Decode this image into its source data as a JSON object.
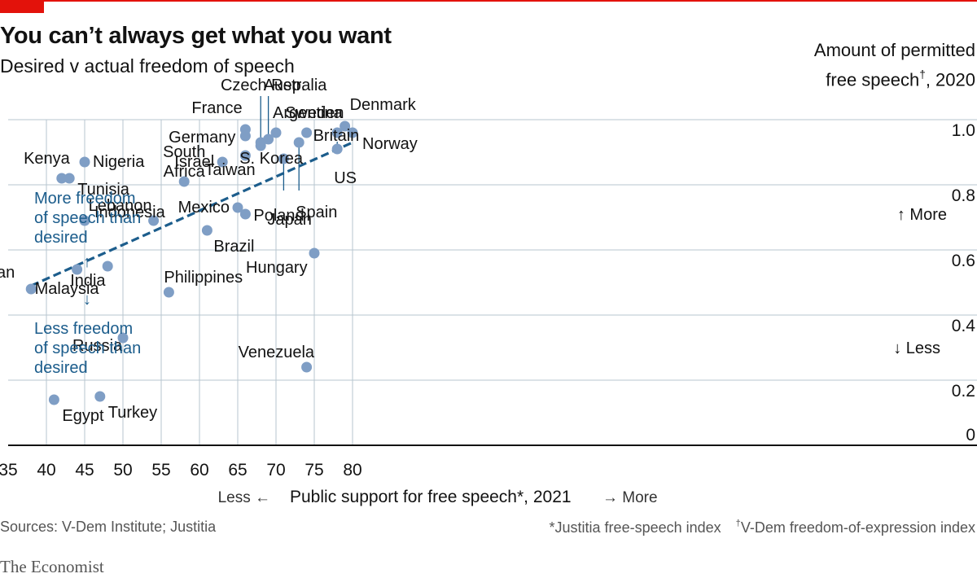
{
  "header": {
    "title": "You can’t always get what you want",
    "subtitle": "Desired v actual freedom of speech",
    "ytitle_line1": "Amount of permitted",
    "ytitle_line2": "free speech",
    "ytitle_dagger": "†",
    "ytitle_year": ", 2020"
  },
  "colors": {
    "accent_red": "#e3120b",
    "point": "#7f9ec5",
    "trend": "#1c5d8c",
    "grid": "#b7c6cf",
    "text": "#121212"
  },
  "chart_data": {
    "type": "scatter",
    "title": "You can’t always get what you want",
    "subtitle": "Desired v actual freedom of speech",
    "xlabel": "Public support for free speech*, 2021",
    "ylabel": "Amount of permitted free speech†, 2020",
    "xlim": [
      35,
      85
    ],
    "ylim": [
      0,
      1.0
    ],
    "x_ticks": [
      "35",
      "40",
      "45",
      "50",
      "55",
      "60",
      "65",
      "70",
      "75",
      "80"
    ],
    "y_ticks": [
      "0",
      "0.2",
      "0.4",
      "0.6",
      "0.8",
      "1.0"
    ],
    "grid": true,
    "points": [
      {
        "label": "Pakistan",
        "x": 38,
        "y": 0.48
      },
      {
        "label": "Egypt",
        "x": 41,
        "y": 0.14
      },
      {
        "label": "Kenya",
        "x": 42,
        "y": 0.82
      },
      {
        "label": "Tunisia",
        "x": 43,
        "y": 0.82
      },
      {
        "label": "Malaysia",
        "x": 44,
        "y": 0.54
      },
      {
        "label": "Nigeria",
        "x": 45,
        "y": 0.87
      },
      {
        "label": "Indonesia",
        "x": 45,
        "y": 0.69
      },
      {
        "label": "Turkey",
        "x": 47,
        "y": 0.15
      },
      {
        "label": "India",
        "x": 48,
        "y": 0.55
      },
      {
        "label": "Russia",
        "x": 50,
        "y": 0.33
      },
      {
        "label": "Lebanon",
        "x": 54,
        "y": 0.69
      },
      {
        "label": "Philippines",
        "x": 56,
        "y": 0.47
      },
      {
        "label": "South Africa",
        "x": 58,
        "y": 0.81
      },
      {
        "label": "Brazil",
        "x": 61,
        "y": 0.66
      },
      {
        "label": "Israel",
        "x": 63,
        "y": 0.87
      },
      {
        "label": "Mexico",
        "x": 65,
        "y": 0.73
      },
      {
        "label": "Germany",
        "x": 66,
        "y": 0.95
      },
      {
        "label": "France",
        "x": 66,
        "y": 0.97
      },
      {
        "label": "Taiwan",
        "x": 66,
        "y": 0.89
      },
      {
        "label": "Poland",
        "x": 66,
        "y": 0.71
      },
      {
        "label": "Czech Rep.",
        "x": 68,
        "y": 0.93
      },
      {
        "label": "S. Korea",
        "x": 68,
        "y": 0.92
      },
      {
        "label": "Australia",
        "x": 69,
        "y": 0.94
      },
      {
        "label": "Argentina",
        "x": 70,
        "y": 0.96
      },
      {
        "label": "Japan",
        "x": 71,
        "y": 0.88
      },
      {
        "label": "Spain",
        "x": 73,
        "y": 0.93
      },
      {
        "label": "Britain",
        "x": 74,
        "y": 0.96
      },
      {
        "label": "Venezuela",
        "x": 74,
        "y": 0.24
      },
      {
        "label": "Hungary",
        "x": 75,
        "y": 0.59
      },
      {
        "label": "Sweden",
        "x": 78,
        "y": 0.96
      },
      {
        "label": "US",
        "x": 78,
        "y": 0.91
      },
      {
        "label": "Denmark",
        "x": 79,
        "y": 0.98
      },
      {
        "label": "Norway",
        "x": 80,
        "y": 0.96
      }
    ],
    "trendline": {
      "x": [
        38,
        80
      ],
      "y": [
        0.49,
        0.93
      ]
    },
    "annotations": {
      "more_freedom": [
        "More freedom",
        "of speech than",
        "desired"
      ],
      "less_freedom": [
        "Less freedom",
        "of speech than",
        "desired"
      ],
      "more_right": "↑ More",
      "less_right": "↓ Less",
      "up_arrow": "↑",
      "down_arrow": "↓",
      "x_less": "Less ←",
      "x_more": "→ More"
    }
  },
  "footer": {
    "sources": "Sources: V-Dem Institute; Justitia",
    "note_star": "*Justitia free-speech index",
    "note_dagger_mark": "†",
    "note_dagger": "V-Dem freedom-of-expression index",
    "brand": "The Economist"
  }
}
